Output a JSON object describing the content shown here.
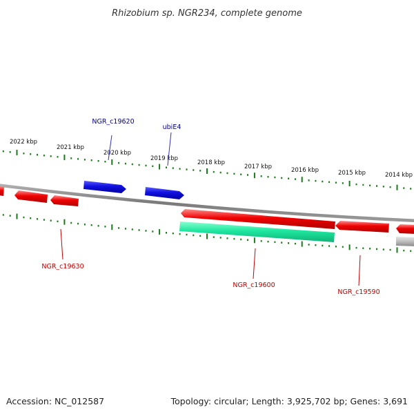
{
  "title": "Rhizobium sp. NGR234, complete genome",
  "footer": {
    "accession": "Accession: NC_012587",
    "summary": "Topology: circular; Length: 3,925,702 bp; Genes: 3,691"
  },
  "scale_labels": [
    "2022 kbp",
    "2021 kbp",
    "2020 kbp",
    "2019 kbp",
    "2018 kbp",
    "2017 kbp",
    "2016 kbp",
    "2015 kbp",
    "2014 kbp"
  ],
  "gene_labels": [
    {
      "text": "NGR_c19620",
      "strand": "forward"
    },
    {
      "text": "ubiE4",
      "strand": "forward"
    },
    {
      "text": "NGR_c19630",
      "strand": "reverse"
    },
    {
      "text": "NGR_c19600",
      "strand": "reverse"
    },
    {
      "text": "NGR_c19590",
      "strand": "reverse"
    }
  ],
  "colors": {
    "forward_gene": "#1010e0",
    "reverse_gene": "#ee0000",
    "rna_gene": "#1ee6a0",
    "pseudo_gene": "#b4b4b4",
    "backbone": "#808080",
    "ticks": "#1a7a1a",
    "label_forward": "#000080",
    "label_reverse": "#c00000"
  }
}
